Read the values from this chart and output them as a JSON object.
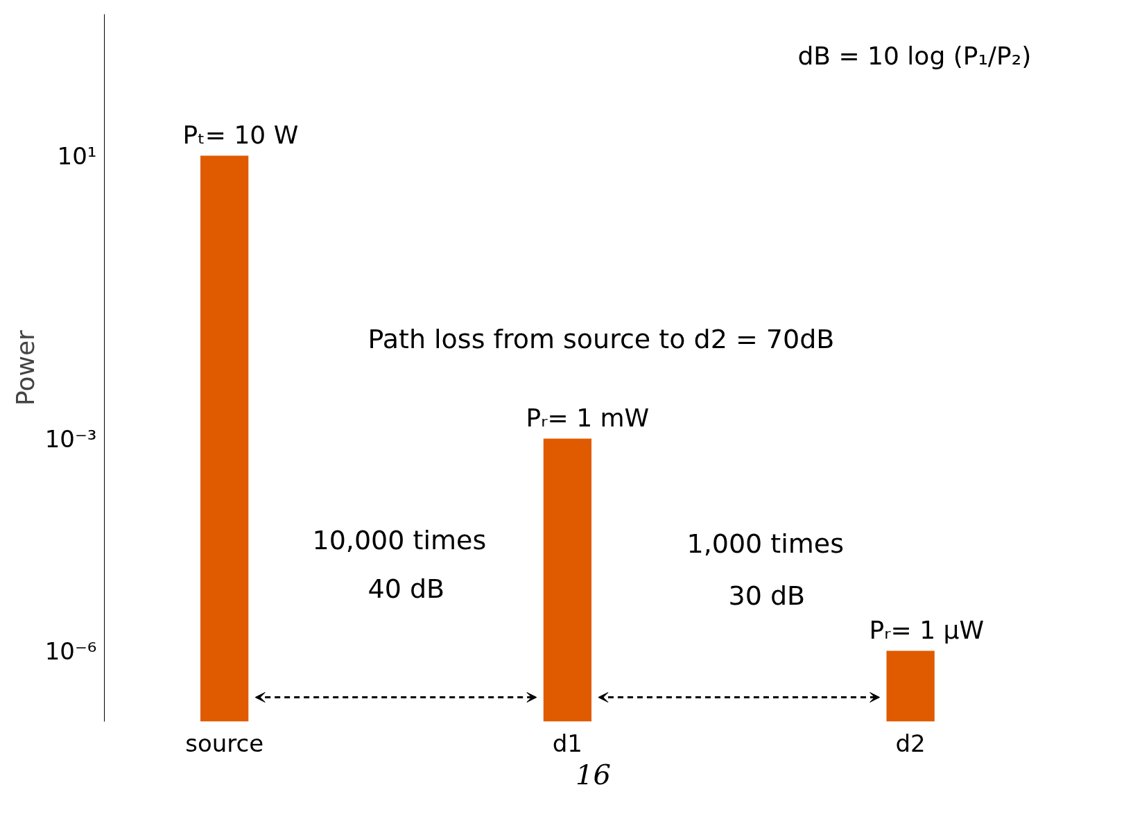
{
  "chart_data": {
    "type": "bar",
    "ylabel": "Power",
    "categories": [
      "source",
      "d1",
      "d2"
    ],
    "values": [
      10,
      0.001,
      1e-06
    ],
    "color": "#e05a00",
    "log": true,
    "ylim": [
      1e-07,
      1000
    ],
    "yticks": [
      {
        "value": 10,
        "label": "10¹"
      },
      {
        "value": 0.001,
        "label": "10⁻³"
      },
      {
        "value": 1e-06,
        "label": "10⁻⁶"
      }
    ],
    "grid": false,
    "annotations": [
      "Pₜ= 10 W",
      "Pᵣ= 1 mW",
      "Pᵣ= 1 µW",
      "dB = 10 log (P₁/P₂)",
      "Path loss from source to d2 = 70dB",
      "10,000 times",
      "40 dB",
      "1,000 times",
      "30 dB",
      "16"
    ]
  }
}
